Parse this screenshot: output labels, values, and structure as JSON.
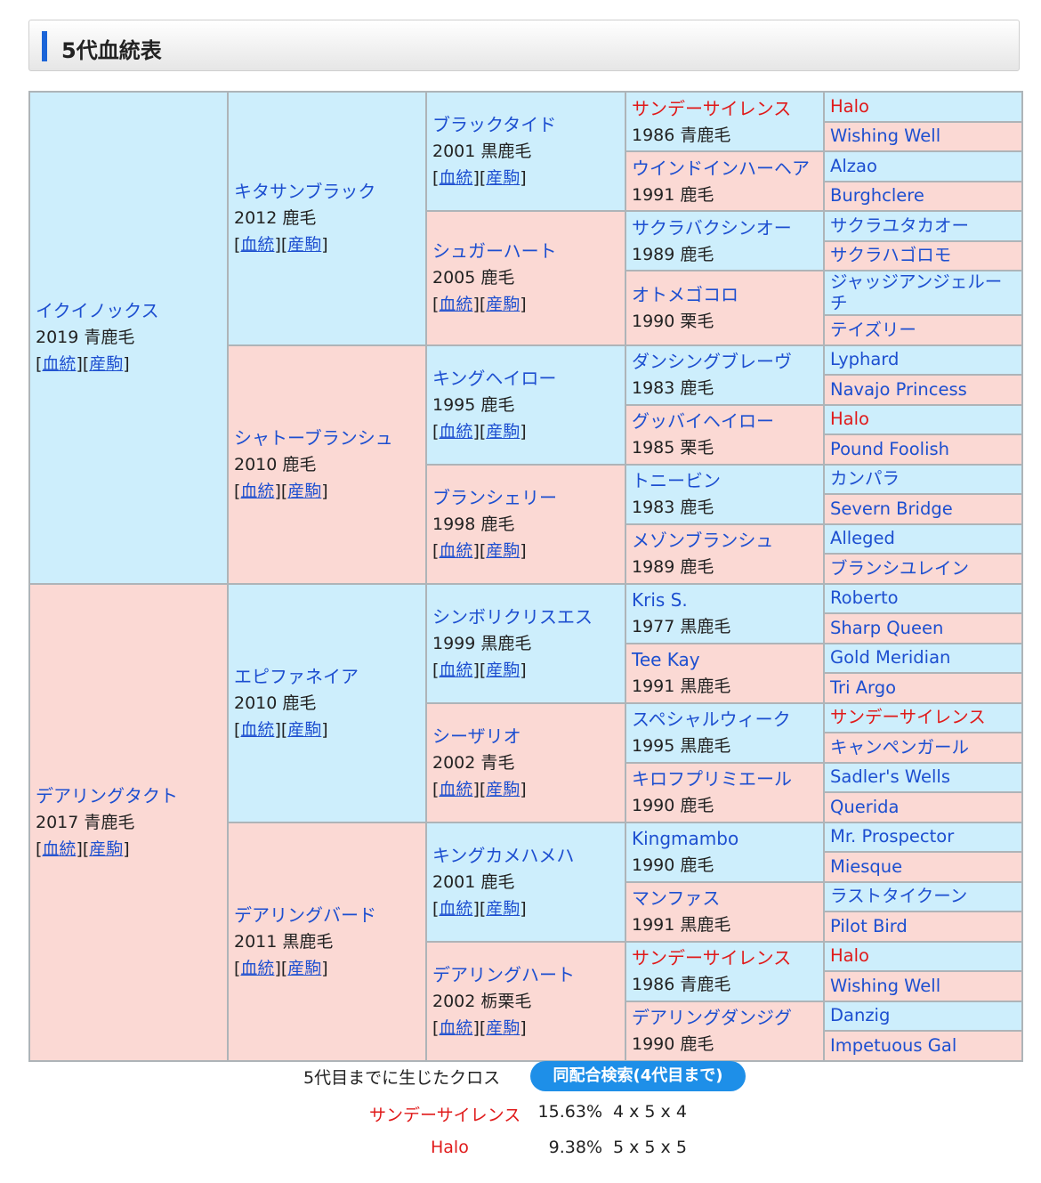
{
  "section_title": "5代血統表",
  "links": {
    "pedigree": "血統",
    "horse": "産駒"
  },
  "gen1": [
    {
      "name": "イクイノックス",
      "info": "2019 青鹿毛"
    },
    {
      "name": "デアリングタクト",
      "info": "2017 青鹿毛"
    }
  ],
  "gen2": [
    {
      "name": "キタサンブラック",
      "info": "2012 鹿毛"
    },
    {
      "name": "シャトーブランシュ",
      "info": "2010 鹿毛"
    },
    {
      "name": "エピファネイア",
      "info": "2010 鹿毛"
    },
    {
      "name": "デアリングバード",
      "info": "2011 黒鹿毛"
    }
  ],
  "gen3": [
    {
      "name": "ブラックタイド",
      "info": "2001 黒鹿毛"
    },
    {
      "name": "シュガーハート",
      "info": "2005 鹿毛"
    },
    {
      "name": "キングヘイロー",
      "info": "1995 鹿毛"
    },
    {
      "name": "ブランシェリー",
      "info": "1998 鹿毛"
    },
    {
      "name": "シンボリクリスエス",
      "info": "1999 黒鹿毛"
    },
    {
      "name": "シーザリオ",
      "info": "2002 青毛"
    },
    {
      "name": "キングカメハメハ",
      "info": "2001 鹿毛"
    },
    {
      "name": "デアリングハート",
      "info": "2002 栃栗毛"
    }
  ],
  "gen4": [
    {
      "name": "サンデーサイレンス",
      "info": "1986 青鹿毛"
    },
    {
      "name": "ウインドインハーヘア",
      "info": "1991 鹿毛"
    },
    {
      "name": "サクラバクシンオー",
      "info": "1989 鹿毛"
    },
    {
      "name": "オトメゴコロ",
      "info": "1990 栗毛"
    },
    {
      "name": "ダンシングブレーヴ",
      "info": "1983 鹿毛"
    },
    {
      "name": "グッバイヘイロー",
      "info": "1985 栗毛"
    },
    {
      "name": "トニービン",
      "info": "1983 鹿毛"
    },
    {
      "name": "メゾンブランシュ",
      "info": "1989 鹿毛"
    },
    {
      "name": "Kris S.",
      "info": "1977 黒鹿毛"
    },
    {
      "name": "Tee Kay",
      "info": "1991 黒鹿毛"
    },
    {
      "name": "スペシャルウィーク",
      "info": "1995 黒鹿毛"
    },
    {
      "name": "キロフプリミエール",
      "info": "1990 鹿毛"
    },
    {
      "name": "Kingmambo",
      "info": "1990 鹿毛"
    },
    {
      "name": "マンファス",
      "info": "1991 黒鹿毛"
    },
    {
      "name": "サンデーサイレンス",
      "info": "1986 青鹿毛"
    },
    {
      "name": "デアリングダンジグ",
      "info": "1990 鹿毛"
    }
  ],
  "gen5": [
    "Halo",
    "Wishing Well",
    "Alzao",
    "Burghclere",
    "サクラユタカオー",
    "サクラハゴロモ",
    "ジャッジアンジェルーチ",
    "テイズリー",
    "Lyphard",
    "Navajo Princess",
    "Halo",
    "Pound Foolish",
    "カンパラ",
    "Severn Bridge",
    "Alleged",
    "ブランシユレイン",
    "Roberto",
    "Sharp Queen",
    "Gold Meridian",
    "Tri Argo",
    "サンデーサイレンス",
    "キャンペンガール",
    "Sadler's Wells",
    "Querida",
    "Mr. Prospector",
    "Miesque",
    "ラストタイクーン",
    "Pilot Bird",
    "Halo",
    "Wishing Well",
    "Danzig",
    "Impetuous Gal"
  ],
  "cross_section": {
    "label": "5代目までに生じたクロス",
    "button": "同配合検索(4代目まで)",
    "rows": [
      {
        "name": "サンデーサイレンス",
        "pct": "15.63%",
        "pattern": "4 x 5 x 4"
      },
      {
        "name": "Halo",
        "pct": "9.38%",
        "pattern": "5 x 5 x 5"
      }
    ]
  },
  "colors": {
    "male_bg": "#cdeefc",
    "female_bg": "#fbd9d4",
    "link": "#1d4fd0",
    "cross_highlight": "#e01a1a",
    "button": "#1e8fe8"
  }
}
